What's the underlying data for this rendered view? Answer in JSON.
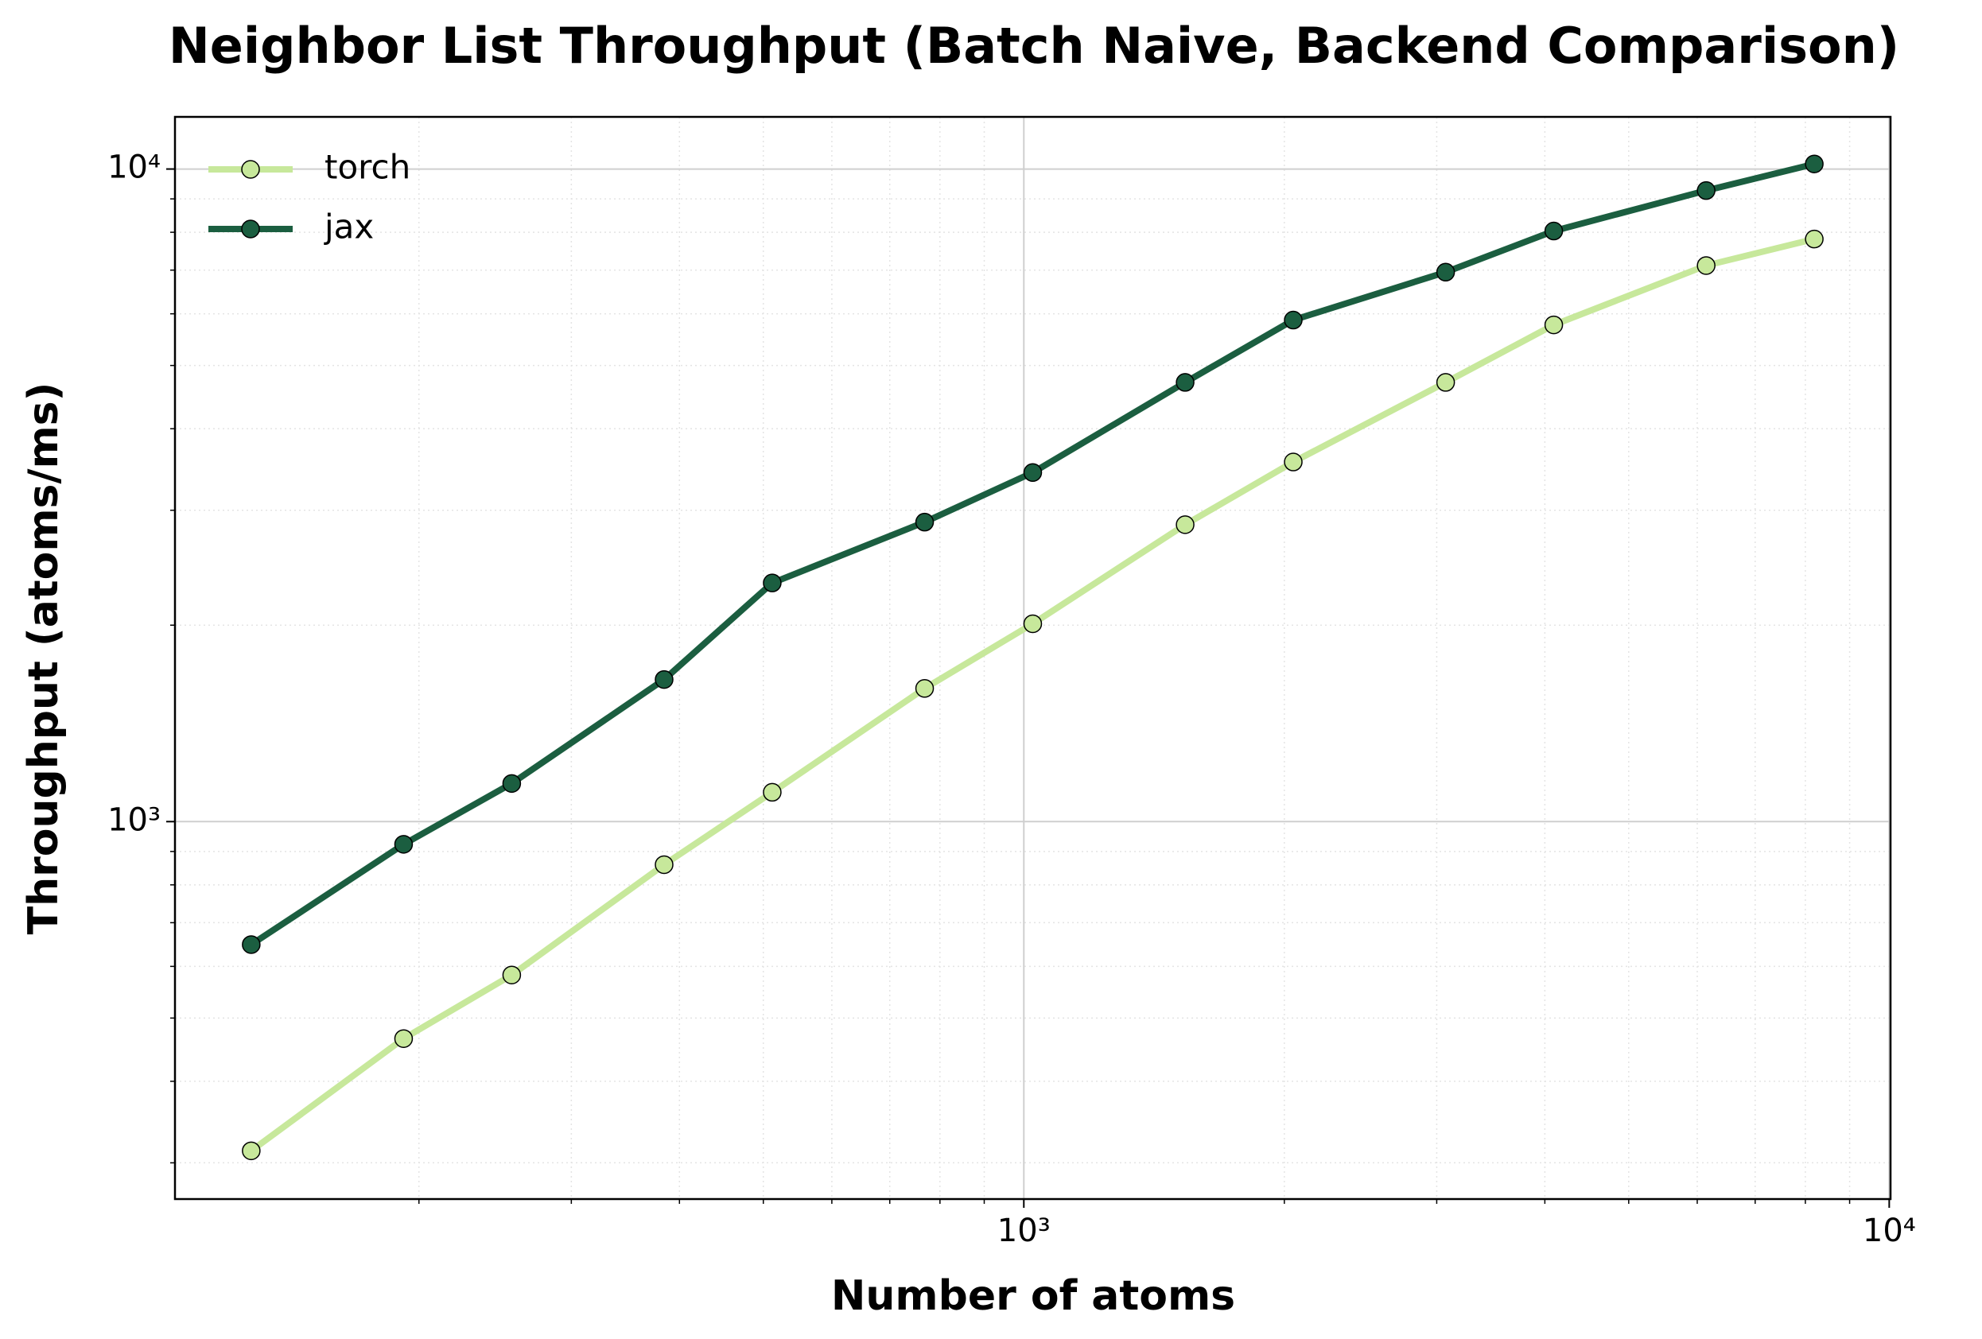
{
  "chart_data": {
    "type": "line",
    "title": "Neighbor List Throughput (Batch Naive, Backend Comparison)",
    "xlabel": "Number of atoms",
    "ylabel": "Throughput (atoms/ms)",
    "x": [
      128,
      192,
      256,
      384,
      512,
      768,
      1024,
      1536,
      2048,
      3072,
      4096,
      6144,
      8192
    ],
    "series": [
      {
        "name": "torch",
        "color": "#c7e89b",
        "values": [
          313,
          465,
          582,
          859,
          1109,
          1600,
          2010,
          2851,
          3557,
          4710,
          5770,
          7114,
          7811
        ]
      },
      {
        "name": "jax",
        "color": "#1b5e40",
        "values": [
          648,
          923,
          1144,
          1651,
          2321,
          2877,
          3427,
          4710,
          5869,
          6950,
          8036,
          9269,
          10180
        ]
      }
    ],
    "xscale": "log",
    "yscale": "log",
    "xlim": [
      104.5,
      10035
    ],
    "ylim": [
      264,
      12020
    ],
    "xticks": [
      {
        "value": 1000,
        "label": "10³"
      },
      {
        "value": 10000,
        "label": "10⁴"
      }
    ],
    "yticks": [
      {
        "value": 1000,
        "label": "10³"
      },
      {
        "value": 10000,
        "label": "10⁴"
      }
    ],
    "xminorticks": [
      200,
      300,
      400,
      500,
      600,
      700,
      800,
      900,
      2000,
      3000,
      4000,
      5000,
      6000,
      7000,
      8000,
      9000
    ],
    "yminorticks": [
      300,
      400,
      500,
      600,
      700,
      800,
      900,
      2000,
      3000,
      4000,
      5000,
      6000,
      7000,
      8000,
      9000
    ],
    "grid": true,
    "legend": "upper left"
  }
}
